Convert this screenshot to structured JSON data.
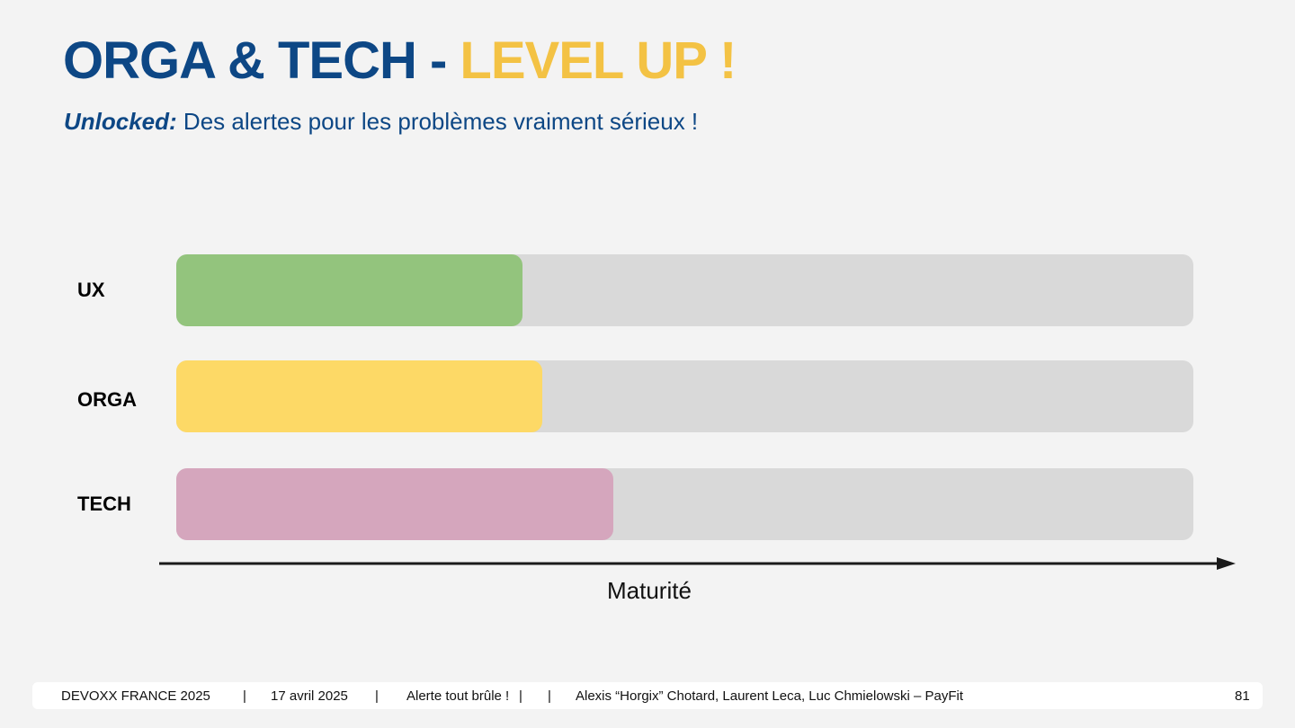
{
  "header": {
    "title_main": "ORGA & TECH",
    "title_sep": " - ",
    "title_highlight": "LEVEL UP !",
    "subtitle_lead": "Unlocked:",
    "subtitle_rest": " Des alertes pour les problèmes vraiment sérieux !"
  },
  "chart_data": {
    "type": "bar",
    "orientation": "horizontal",
    "categories": [
      "UX",
      "ORGA",
      "TECH"
    ],
    "values": [
      0.34,
      0.36,
      0.43
    ],
    "colors": [
      "#93c47d",
      "#fdd966",
      "#d5a6bd"
    ],
    "track_color": "#d9d9d9",
    "xlabel": "Maturité",
    "xlim": [
      0,
      1
    ]
  },
  "footer": {
    "event": "DEVOXX FRANCE 2025",
    "sep1": "|",
    "date": "17 avril 2025",
    "sep2": "|",
    "talk": "Alerte tout brûle !",
    "sep3": "|",
    "sep4": "|",
    "authors": "Alexis “Horgix” Chotard, Laurent Leca, Luc Chmielowski – PayFit",
    "page": "81"
  }
}
